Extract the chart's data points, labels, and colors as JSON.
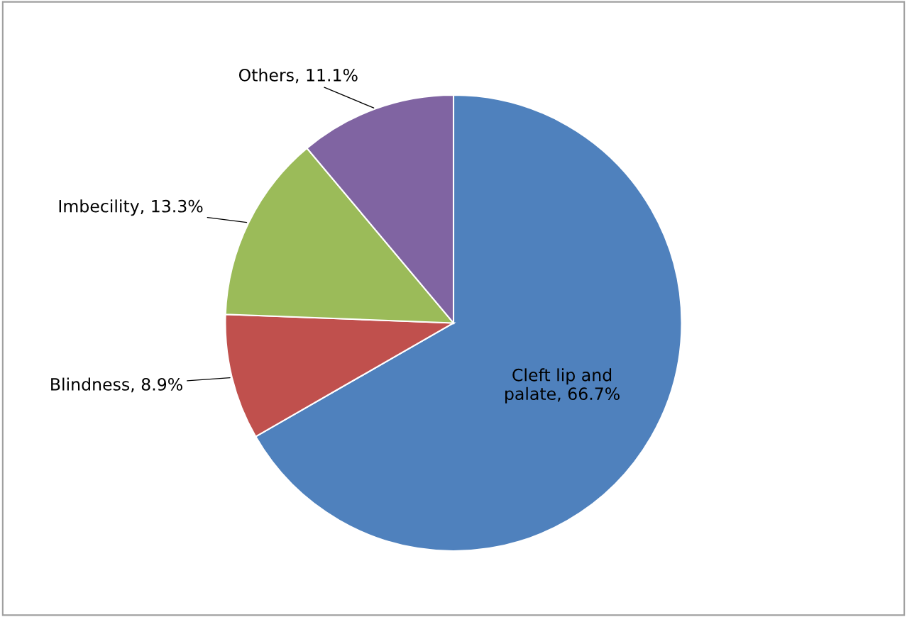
{
  "chart_data": {
    "type": "pie",
    "categories": [
      "Cleft lip and palate",
      "Blindness",
      "Imbecility",
      "Others"
    ],
    "values": [
      66.7,
      8.9,
      13.3,
      11.1
    ],
    "colors": [
      "#4f81bd",
      "#c0504d",
      "#9bbb59",
      "#8064a2"
    ],
    "value_labels": [
      "66.7%",
      "8.9%",
      "13.3%",
      "11.1%"
    ]
  }
}
